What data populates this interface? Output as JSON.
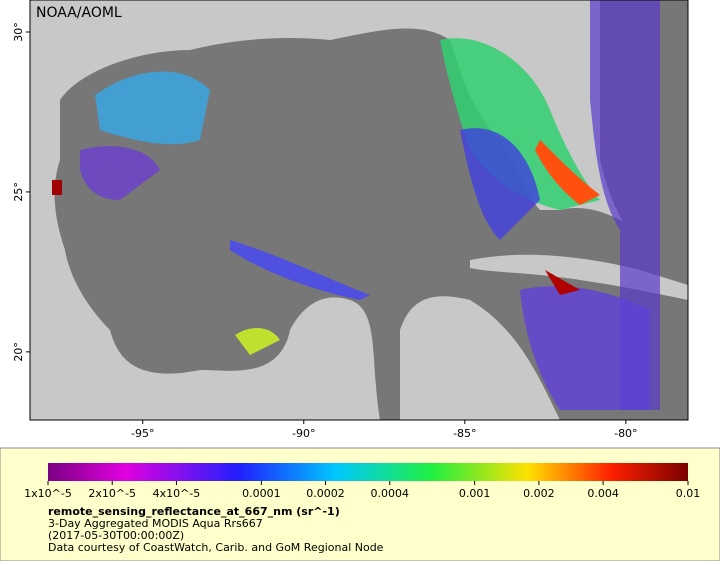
{
  "map": {
    "label": "NOAA/AOML",
    "xlim": [
      -98.5,
      -78.07
    ],
    "ylim": [
      17.87,
      31
    ],
    "xticks": [
      {
        "value": -95,
        "label": "-95°"
      },
      {
        "value": -90,
        "label": "-90°"
      },
      {
        "value": -85,
        "label": "-85°"
      },
      {
        "value": -80,
        "label": "-80°"
      }
    ],
    "yticks": [
      {
        "value": 30,
        "label": "30°"
      },
      {
        "value": 25,
        "label": "25°"
      },
      {
        "value": 20,
        "label": "20°"
      }
    ]
  },
  "colorbar": {
    "log": true,
    "lim": [
      1e-05,
      0.01
    ],
    "ticks": [
      {
        "value": 1e-05,
        "label": "1x10^-5"
      },
      {
        "value": 2e-05,
        "label": "2x10^-5"
      },
      {
        "value": 4e-05,
        "label": "4x10^-5"
      },
      0.0001,
      0.0002,
      0.0004,
      0.001,
      0.002,
      0.004,
      0.01
    ]
  },
  "caption": {
    "title": "remote_sensing_reflectance_at_667_nm (sr^-1)",
    "lines": [
      "3-Day Aggregated MODIS Aqua Rrs667",
      "(2017-05-30T00:00:00Z)",
      "Data courtesy of CoastWatch, Carib. and GoM Regional Node"
    ]
  }
}
